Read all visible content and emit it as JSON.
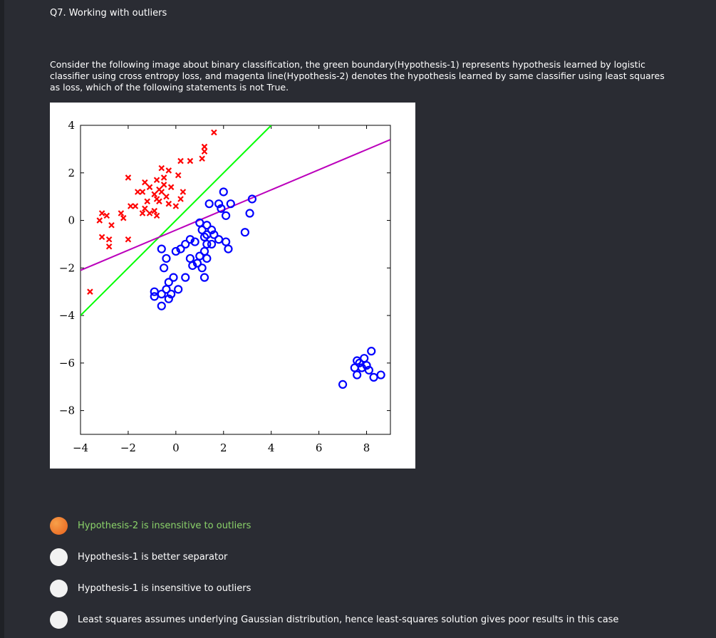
{
  "question": {
    "title": "Q7. Working with outliers",
    "text": "Consider the following image about binary classification, the green boundary(Hypothesis-1) represents hypothesis learned by logistic classifier using cross entropy loss, and magenta line(Hypothesis-2) denotes the hypothesis learned by same classifier using least squares as loss, which of the following statements is not True."
  },
  "options": [
    {
      "label": "Hypothesis-2 is insensitive to outliers",
      "selected": true,
      "highlight_color": "#8bd36a"
    },
    {
      "label": "Hypothesis-1 is better separator",
      "selected": false
    },
    {
      "label": "Hypothesis-1 is insensitive to outliers",
      "selected": false
    },
    {
      "label": "Least squares assumes underlying Gaussian distribution, hence least-squares solution gives poor results in this case",
      "selected": false
    }
  ],
  "colors": {
    "background": "#2a2c33",
    "selected_radio": "#e8601c",
    "class_x": "#ff0000",
    "class_o": "#0000ff",
    "green_line": "#00ff00",
    "magenta_line": "#bb00bb"
  },
  "chart_data": {
    "type": "scatter",
    "xlim": [
      -4,
      9
    ],
    "ylim": [
      -9,
      4
    ],
    "x_ticks": [
      "−4",
      "−2",
      "0",
      "2",
      "4",
      "6",
      "8"
    ],
    "y_ticks": [
      "4",
      "2",
      "0",
      "−2",
      "−4",
      "−6",
      "−8"
    ],
    "x_tick_values": [
      -4,
      -2,
      0,
      2,
      4,
      6,
      8
    ],
    "y_tick_values": [
      4,
      2,
      0,
      -2,
      -4,
      -6,
      -8
    ],
    "series": [
      {
        "marker": "x",
        "color": "#ff0000",
        "points": [
          [
            1.6,
            3.7
          ],
          [
            1.2,
            3.1
          ],
          [
            1.2,
            2.9
          ],
          [
            1.1,
            2.6
          ],
          [
            0.6,
            2.5
          ],
          [
            0.2,
            2.5
          ],
          [
            -0.6,
            2.2
          ],
          [
            -0.3,
            2.1
          ],
          [
            0.1,
            1.9
          ],
          [
            -2.0,
            1.8
          ],
          [
            -1.3,
            1.6
          ],
          [
            -0.8,
            1.7
          ],
          [
            -1.1,
            1.4
          ],
          [
            -0.5,
            1.5
          ],
          [
            -0.2,
            1.4
          ],
          [
            0.3,
            1.2
          ],
          [
            -1.6,
            1.2
          ],
          [
            -1.4,
            1.2
          ],
          [
            -0.9,
            1.1
          ],
          [
            -0.6,
            1.2
          ],
          [
            -0.4,
            1.0
          ],
          [
            -0.8,
            0.9
          ],
          [
            0.2,
            0.9
          ],
          [
            -1.2,
            0.8
          ],
          [
            -0.7,
            0.8
          ],
          [
            -0.3,
            0.7
          ],
          [
            0.0,
            0.6
          ],
          [
            -1.9,
            0.6
          ],
          [
            -1.7,
            0.6
          ],
          [
            -1.3,
            0.5
          ],
          [
            -0.9,
            0.4
          ],
          [
            -1.4,
            0.3
          ],
          [
            -1.1,
            0.3
          ],
          [
            -2.3,
            0.3
          ],
          [
            -3.1,
            0.3
          ],
          [
            -2.9,
            0.2
          ],
          [
            -0.8,
            0.2
          ],
          [
            -2.2,
            0.1
          ],
          [
            -3.2,
            0.0
          ],
          [
            -2.7,
            -0.2
          ],
          [
            -3.1,
            -0.7
          ],
          [
            -2.8,
            -0.8
          ],
          [
            -2.0,
            -0.8
          ],
          [
            -2.8,
            -1.1
          ],
          [
            -3.6,
            -3.0
          ],
          [
            -0.7,
            1.3
          ],
          [
            -0.5,
            1.8
          ]
        ]
      },
      {
        "marker": "o",
        "color": "#0000ff",
        "points": [
          [
            2.0,
            1.2
          ],
          [
            2.3,
            0.7
          ],
          [
            1.8,
            0.7
          ],
          [
            1.4,
            0.7
          ],
          [
            1.9,
            0.5
          ],
          [
            2.1,
            0.2
          ],
          [
            3.2,
            0.9
          ],
          [
            3.1,
            0.3
          ],
          [
            2.9,
            -0.5
          ],
          [
            1.3,
            -0.2
          ],
          [
            1.0,
            -0.1
          ],
          [
            1.1,
            -0.4
          ],
          [
            1.5,
            -0.4
          ],
          [
            1.3,
            -0.6
          ],
          [
            1.6,
            -0.6
          ],
          [
            1.2,
            -0.7
          ],
          [
            1.8,
            -0.8
          ],
          [
            2.1,
            -0.9
          ],
          [
            2.2,
            -1.2
          ],
          [
            1.5,
            -1.0
          ],
          [
            0.8,
            -0.9
          ],
          [
            0.6,
            -0.8
          ],
          [
            0.4,
            -1.0
          ],
          [
            0.2,
            -1.2
          ],
          [
            0.0,
            -1.3
          ],
          [
            -0.6,
            -1.2
          ],
          [
            1.2,
            -1.3
          ],
          [
            1.0,
            -1.5
          ],
          [
            1.3,
            -1.6
          ],
          [
            -0.4,
            -1.6
          ],
          [
            0.9,
            -1.8
          ],
          [
            0.7,
            -1.9
          ],
          [
            1.1,
            -2.0
          ],
          [
            -0.5,
            -2.0
          ],
          [
            -0.1,
            -2.4
          ],
          [
            0.4,
            -2.4
          ],
          [
            1.2,
            -2.4
          ],
          [
            -0.3,
            -2.6
          ],
          [
            -0.4,
            -2.9
          ],
          [
            0.1,
            -2.9
          ],
          [
            -0.9,
            -3.0
          ],
          [
            -0.6,
            -3.1
          ],
          [
            -0.2,
            -3.1
          ],
          [
            -0.9,
            -3.2
          ],
          [
            -0.3,
            -3.3
          ],
          [
            -0.6,
            -3.6
          ],
          [
            0.6,
            -1.6
          ],
          [
            1.3,
            -1.0
          ],
          [
            7.6,
            -5.9
          ],
          [
            7.9,
            -5.8
          ],
          [
            8.2,
            -5.5
          ],
          [
            7.7,
            -6.0
          ],
          [
            8.0,
            -6.1
          ],
          [
            7.5,
            -6.2
          ],
          [
            7.8,
            -6.2
          ],
          [
            7.6,
            -6.5
          ],
          [
            8.1,
            -6.3
          ],
          [
            8.3,
            -6.6
          ],
          [
            8.6,
            -6.5
          ],
          [
            7.0,
            -6.9
          ]
        ]
      }
    ],
    "lines": [
      {
        "name": "Hypothesis-1",
        "color": "#00ff00",
        "from": [
          -4,
          -4.0
        ],
        "to": [
          4.0,
          4.0
        ]
      },
      {
        "name": "Hypothesis-2",
        "color": "#bb00bb",
        "from": [
          -4,
          -2.1
        ],
        "to": [
          9.0,
          3.4
        ]
      }
    ]
  }
}
